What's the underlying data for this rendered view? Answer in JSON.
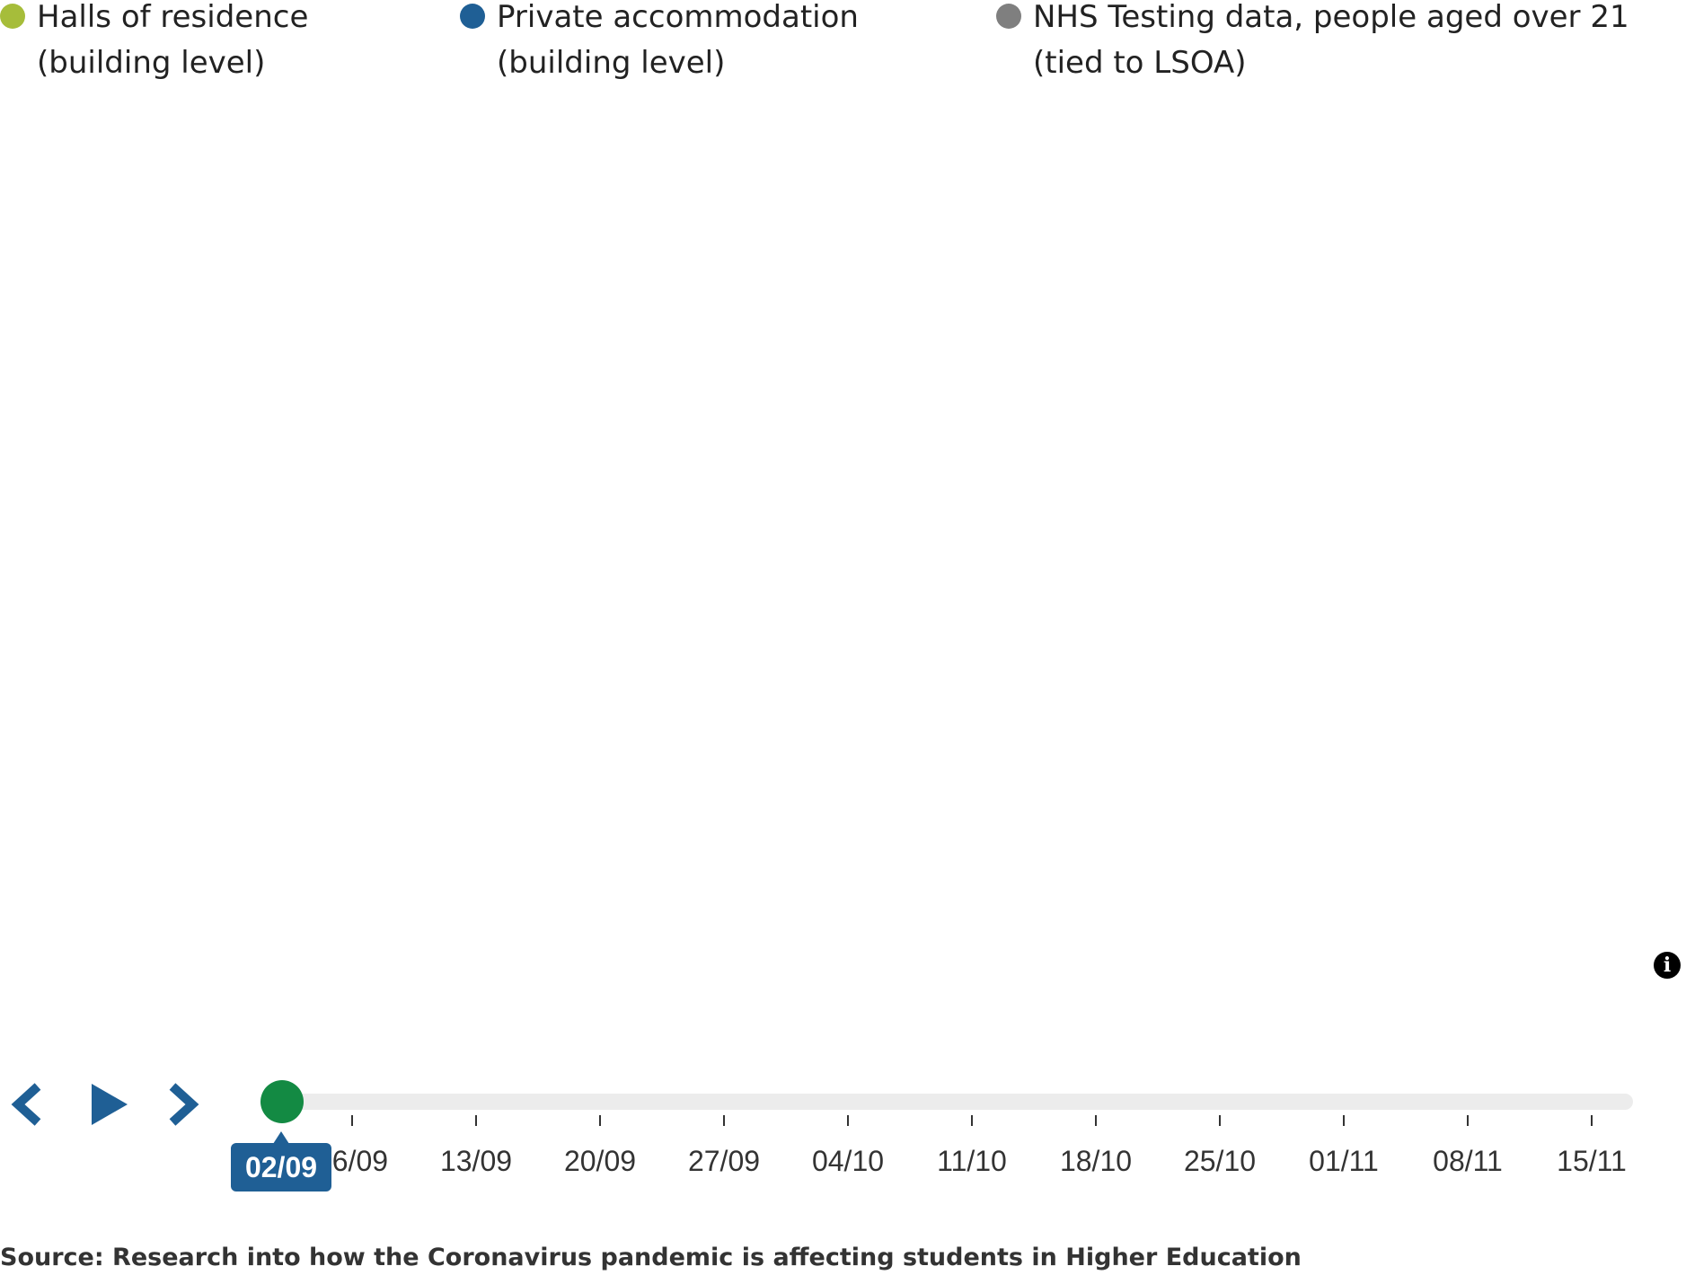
{
  "legend": {
    "items": [
      {
        "label": "Halls of residence (building level)",
        "color": "#a6bd3a"
      },
      {
        "label": "Private accommodation (building level)",
        "color": "#1f5f95"
      },
      {
        "label": "NHS Testing data, people aged over 21 (tied to LSOA)",
        "color": "#7f7f7f"
      }
    ]
  },
  "map": {
    "info_icon": "info-icon",
    "info_glyph": "i"
  },
  "controls": {
    "prev_icon": "chevron-left-icon",
    "play_icon": "play-icon",
    "next_icon": "chevron-right-icon",
    "color": "#1f5f95"
  },
  "timeline": {
    "current_label": "02/09",
    "current_index": 0,
    "handle_color": "#138a43",
    "ticks": [
      "06/09",
      "13/09",
      "20/09",
      "27/09",
      "04/10",
      "11/10",
      "18/10",
      "25/10",
      "01/11",
      "08/11",
      "15/11"
    ]
  },
  "source": "Source: Research into how the Coronavirus pandemic is affecting students in Higher Education"
}
